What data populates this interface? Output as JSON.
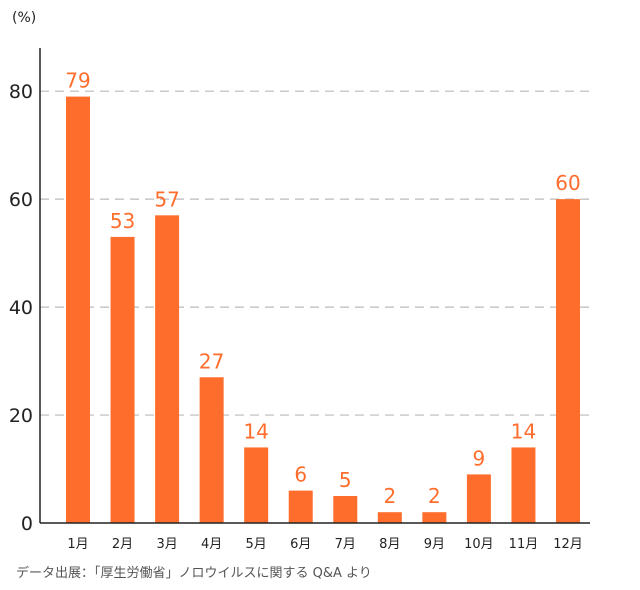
{
  "chart_data": {
    "type": "bar",
    "categories": [
      "1月",
      "2月",
      "3月",
      "4月",
      "5月",
      "6月",
      "7月",
      "8月",
      "9月",
      "10月",
      "11月",
      "12月"
    ],
    "values": [
      79,
      53,
      57,
      27,
      14,
      6,
      5,
      2,
      2,
      9,
      14,
      60
    ],
    "data_labels": [
      "79",
      "53",
      "57",
      "27",
      "14",
      "6",
      "5",
      "2",
      "2",
      "9",
      "14",
      "60"
    ],
    "ylabel": "(%)",
    "ylim": [
      0,
      88
    ],
    "yticks": [
      0,
      20,
      40,
      60,
      80
    ],
    "grid": "horizontal dashed",
    "colors": {
      "bar": "#ff6d2d",
      "label": "#ff6d2d",
      "grid": "#bbbbbb",
      "axis": "#222222"
    }
  },
  "source_text": "データ出展：「厚生労働省」ノロウイルスに関する Q&A より"
}
